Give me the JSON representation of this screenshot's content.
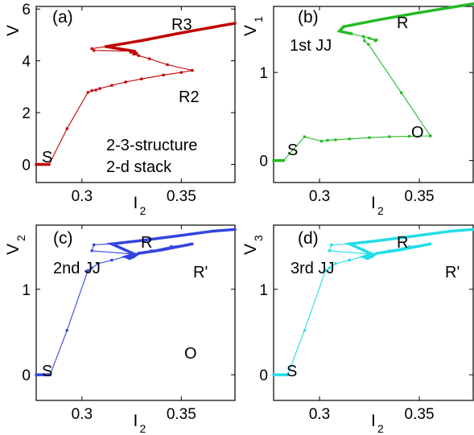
{
  "chart_data": [
    {
      "type": "line",
      "panel_label": "(a)",
      "ylabel": "V",
      "xlabel_main": "I",
      "xlabel_sub": "2",
      "xlim": [
        0.277,
        0.377
      ],
      "ylim": [
        -0.7,
        6.1
      ],
      "xticks": [
        "0.3",
        "0.35"
      ],
      "yticks": [
        "0",
        "2",
        "4",
        "6"
      ],
      "color": "#c00000",
      "annotations": [
        "R3",
        "R2",
        "S",
        "2-3-structure",
        "2-d stack"
      ],
      "series": [
        {
          "points": [
            [
              0.277,
              0
            ],
            [
              0.2835,
              0
            ],
            [
              0.2925,
              1.38
            ],
            [
              0.303,
              2.78
            ],
            [
              0.305,
              2.85
            ],
            [
              0.307,
              2.87
            ],
            [
              0.309,
              2.93
            ],
            [
              0.315,
              3.05
            ],
            [
              0.322,
              3.18
            ],
            [
              0.33,
              3.3
            ],
            [
              0.341,
              3.45
            ],
            [
              0.35,
              3.55
            ],
            [
              0.3555,
              3.63
            ]
          ]
        },
        {
          "points": [
            [
              0.3555,
              3.63
            ],
            [
              0.343,
              3.85
            ],
            [
              0.334,
              4.08
            ],
            [
              0.3285,
              4.2
            ],
            [
              0.326,
              4.26
            ],
            [
              0.3275,
              4.3
            ],
            [
              0.3245,
              4.33
            ],
            [
              0.3265,
              4.37
            ],
            [
              0.306,
              4.4
            ],
            [
              0.305,
              4.47
            ],
            [
              0.312,
              4.55
            ],
            [
              0.33,
              4.78
            ],
            [
              0.35,
              5.08
            ],
            [
              0.366,
              5.3
            ],
            [
              0.377,
              5.45
            ]
          ]
        }
      ]
    },
    {
      "type": "line",
      "panel_label": "(b)",
      "ylabel": "V",
      "ylabel_sub": "1",
      "xlabel_main": "I",
      "xlabel_sub": "2",
      "xlim": [
        0.277,
        0.377
      ],
      "ylim": [
        -0.25,
        1.75
      ],
      "xticks": [
        "0.3",
        "0.35"
      ],
      "yticks": [
        "0",
        "1"
      ],
      "color": "#22bb22",
      "annotations": [
        "R",
        "1st JJ",
        "S",
        "O"
      ],
      "series": [
        {
          "points": [
            [
              0.277,
              0
            ],
            [
              0.282,
              0
            ],
            [
              0.2925,
              0.27
            ],
            [
              0.301,
              0.22
            ],
            [
              0.304,
              0.23
            ],
            [
              0.308,
              0.235
            ],
            [
              0.315,
              0.245
            ],
            [
              0.325,
              0.26
            ],
            [
              0.335,
              0.27
            ],
            [
              0.345,
              0.275
            ],
            [
              0.3555,
              0.28
            ]
          ]
        },
        {
          "points": [
            [
              0.3555,
              0.28
            ],
            [
              0.341,
              0.77
            ],
            [
              0.3245,
              1.32
            ],
            [
              0.3225,
              1.36
            ],
            [
              0.322,
              1.41
            ],
            [
              0.328,
              1.36
            ],
            [
              0.325,
              1.39
            ],
            [
              0.3285,
              1.37
            ],
            [
              0.316,
              1.44
            ],
            [
              0.31,
              1.47
            ],
            [
              0.312,
              1.52
            ],
            [
              0.33,
              1.6
            ],
            [
              0.35,
              1.68
            ],
            [
              0.366,
              1.74
            ],
            [
              0.377,
              1.78
            ]
          ]
        }
      ]
    },
    {
      "type": "line",
      "panel_label": "(c)",
      "ylabel": "V",
      "ylabel_sub": "2",
      "xlabel_main": "I",
      "xlabel_sub": "2",
      "xlim": [
        0.277,
        0.377
      ],
      "ylim": [
        -0.3,
        1.75
      ],
      "xticks": [
        "0.3",
        "0.35"
      ],
      "yticks": [
        "0",
        "1"
      ],
      "color": "#3344dd",
      "annotations": [
        "R",
        "2nd JJ",
        "R'",
        "S",
        "O"
      ],
      "series": [
        {
          "points": [
            [
              0.277,
              0
            ],
            [
              0.284,
              0
            ],
            [
              0.2925,
              0.52
            ],
            [
              0.303,
              1.22
            ],
            [
              0.305,
              1.25
            ],
            [
              0.308,
              1.3
            ],
            [
              0.315,
              1.34
            ],
            [
              0.325,
              1.4
            ],
            [
              0.335,
              1.45
            ],
            [
              0.345,
              1.5
            ],
            [
              0.3555,
              1.53
            ]
          ]
        },
        {
          "points": [
            [
              0.3555,
              1.53
            ],
            [
              0.34,
              1.46
            ],
            [
              0.3285,
              1.42
            ],
            [
              0.326,
              1.38
            ],
            [
              0.324,
              1.36
            ],
            [
              0.322,
              1.38
            ],
            [
              0.3265,
              1.41
            ],
            [
              0.305,
              1.45
            ],
            [
              0.306,
              1.52
            ],
            [
              0.315,
              1.53
            ],
            [
              0.33,
              1.57
            ],
            [
              0.35,
              1.63
            ],
            [
              0.366,
              1.68
            ],
            [
              0.377,
              1.7
            ]
          ]
        }
      ]
    },
    {
      "type": "line",
      "panel_label": "(d)",
      "ylabel": "V",
      "ylabel_sub": "3",
      "xlabel_main": "I",
      "xlabel_sub": "2",
      "xlim": [
        0.277,
        0.377
      ],
      "ylim": [
        -0.3,
        1.75
      ],
      "xticks": [
        "0.3",
        "0.35"
      ],
      "yticks": [
        "0",
        "1"
      ],
      "color": "#22dde8",
      "annotations": [
        "R",
        "3rd JJ",
        "R'",
        "S"
      ],
      "series": [
        {
          "points": [
            [
              0.277,
              0
            ],
            [
              0.284,
              0
            ],
            [
              0.2925,
              0.52
            ],
            [
              0.303,
              1.22
            ],
            [
              0.305,
              1.25
            ],
            [
              0.308,
              1.3
            ],
            [
              0.315,
              1.34
            ],
            [
              0.325,
              1.4
            ],
            [
              0.335,
              1.45
            ],
            [
              0.345,
              1.5
            ],
            [
              0.3555,
              1.53
            ]
          ]
        },
        {
          "points": [
            [
              0.3555,
              1.53
            ],
            [
              0.34,
              1.46
            ],
            [
              0.3285,
              1.42
            ],
            [
              0.326,
              1.38
            ],
            [
              0.324,
              1.36
            ],
            [
              0.322,
              1.38
            ],
            [
              0.3265,
              1.41
            ],
            [
              0.305,
              1.45
            ],
            [
              0.306,
              1.52
            ],
            [
              0.315,
              1.53
            ],
            [
              0.33,
              1.57
            ],
            [
              0.35,
              1.63
            ],
            [
              0.366,
              1.68
            ],
            [
              0.377,
              1.7
            ]
          ]
        }
      ]
    }
  ]
}
